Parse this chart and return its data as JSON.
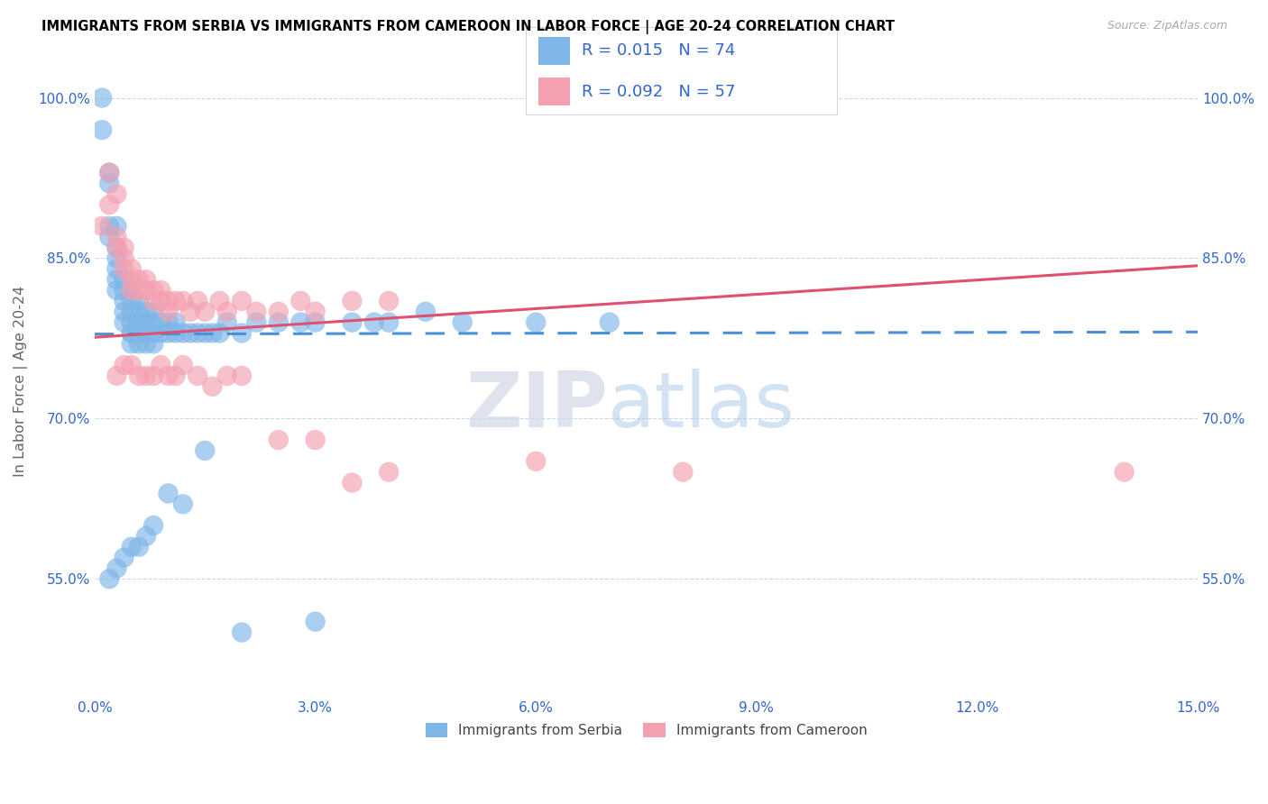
{
  "title": "IMMIGRANTS FROM SERBIA VS IMMIGRANTS FROM CAMEROON IN LABOR FORCE | AGE 20-24 CORRELATION CHART",
  "source": "Source: ZipAtlas.com",
  "ylabel": "In Labor Force | Age 20-24",
  "xlim": [
    0.0,
    0.15
  ],
  "ylim": [
    0.44,
    1.03
  ],
  "xticks": [
    0.0,
    0.03,
    0.06,
    0.09,
    0.12,
    0.15
  ],
  "yticks": [
    0.55,
    0.7,
    0.85,
    1.0
  ],
  "ytick_labels": [
    "55.0%",
    "70.0%",
    "85.0%",
    "100.0%"
  ],
  "xtick_labels": [
    "0.0%",
    "3.0%",
    "6.0%",
    "9.0%",
    "12.0%",
    "15.0%"
  ],
  "serbia_color": "#7eb6e8",
  "cameroon_color": "#f4a0b0",
  "serbia_line_color": "#4a90d9",
  "cameroon_line_color": "#e05070",
  "legend_R_N_color": "#3366cc",
  "watermark_zip": "ZIP",
  "watermark_atlas": "atlas",
  "serbia_x": [
    0.001,
    0.001,
    0.002,
    0.002,
    0.002,
    0.002,
    0.003,
    0.003,
    0.003,
    0.003,
    0.003,
    0.003,
    0.004,
    0.004,
    0.004,
    0.004,
    0.004,
    0.005,
    0.005,
    0.005,
    0.005,
    0.005,
    0.005,
    0.005,
    0.006,
    0.006,
    0.006,
    0.006,
    0.006,
    0.007,
    0.007,
    0.007,
    0.007,
    0.008,
    0.008,
    0.008,
    0.008,
    0.009,
    0.009,
    0.01,
    0.01,
    0.011,
    0.011,
    0.012,
    0.013,
    0.014,
    0.015,
    0.016,
    0.017,
    0.018,
    0.02,
    0.022,
    0.025,
    0.028,
    0.03,
    0.035,
    0.038,
    0.04,
    0.045,
    0.05,
    0.06,
    0.07,
    0.002,
    0.003,
    0.004,
    0.005,
    0.006,
    0.007,
    0.008,
    0.01,
    0.012,
    0.015,
    0.02,
    0.03
  ],
  "serbia_y": [
    1.0,
    0.97,
    0.93,
    0.92,
    0.88,
    0.87,
    0.88,
    0.86,
    0.85,
    0.84,
    0.83,
    0.82,
    0.83,
    0.82,
    0.81,
    0.8,
    0.79,
    0.82,
    0.81,
    0.8,
    0.79,
    0.78,
    0.78,
    0.77,
    0.81,
    0.8,
    0.79,
    0.78,
    0.77,
    0.8,
    0.79,
    0.78,
    0.77,
    0.8,
    0.79,
    0.78,
    0.77,
    0.79,
    0.78,
    0.79,
    0.78,
    0.79,
    0.78,
    0.78,
    0.78,
    0.78,
    0.78,
    0.78,
    0.78,
    0.79,
    0.78,
    0.79,
    0.79,
    0.79,
    0.79,
    0.79,
    0.79,
    0.79,
    0.8,
    0.79,
    0.79,
    0.79,
    0.55,
    0.56,
    0.57,
    0.58,
    0.58,
    0.59,
    0.6,
    0.63,
    0.62,
    0.67,
    0.5,
    0.51
  ],
  "cameroon_x": [
    0.001,
    0.002,
    0.002,
    0.003,
    0.003,
    0.004,
    0.004,
    0.004,
    0.005,
    0.005,
    0.005,
    0.006,
    0.006,
    0.007,
    0.007,
    0.008,
    0.008,
    0.009,
    0.009,
    0.01,
    0.01,
    0.011,
    0.012,
    0.013,
    0.014,
    0.015,
    0.017,
    0.018,
    0.02,
    0.022,
    0.025,
    0.028,
    0.03,
    0.035,
    0.04,
    0.003,
    0.004,
    0.005,
    0.006,
    0.007,
    0.008,
    0.009,
    0.01,
    0.011,
    0.012,
    0.014,
    0.016,
    0.018,
    0.02,
    0.025,
    0.03,
    0.035,
    0.04,
    0.06,
    0.08,
    0.14,
    0.003
  ],
  "cameroon_y": [
    0.88,
    0.93,
    0.9,
    0.87,
    0.86,
    0.86,
    0.85,
    0.84,
    0.84,
    0.83,
    0.82,
    0.83,
    0.82,
    0.83,
    0.82,
    0.82,
    0.81,
    0.82,
    0.81,
    0.81,
    0.8,
    0.81,
    0.81,
    0.8,
    0.81,
    0.8,
    0.81,
    0.8,
    0.81,
    0.8,
    0.8,
    0.81,
    0.8,
    0.81,
    0.81,
    0.74,
    0.75,
    0.75,
    0.74,
    0.74,
    0.74,
    0.75,
    0.74,
    0.74,
    0.75,
    0.74,
    0.73,
    0.74,
    0.74,
    0.68,
    0.68,
    0.64,
    0.65,
    0.66,
    0.65,
    0.65,
    0.91
  ],
  "serbia_trend_x": [
    0.0,
    0.15
  ],
  "serbia_trend_y": [
    0.779,
    0.781
  ],
  "cameroon_trend_x": [
    0.0,
    0.15
  ],
  "cameroon_trend_y": [
    0.776,
    0.843
  ]
}
